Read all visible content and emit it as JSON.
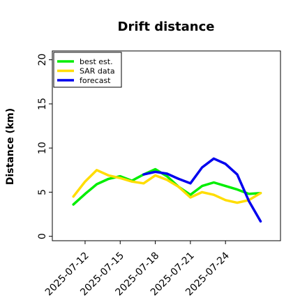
{
  "chart_data": {
    "type": "line",
    "title": "Drift distance",
    "xlabel": "",
    "ylabel": "Distance (km)",
    "ylim": [
      -0.5,
      21
    ],
    "yticks": [
      0,
      5,
      10,
      15,
      20
    ],
    "xticks": [
      "2025-07-12",
      "2025-07-15",
      "2025-07-18",
      "2025-07-21",
      "2025-07-24"
    ],
    "grid": false,
    "legend_position": "top-left",
    "series": [
      {
        "name": "best est.",
        "color": "#00ee00",
        "points": [
          {
            "x": "2025-07-11",
            "y": 3.6
          },
          {
            "x": "2025-07-12",
            "y": 4.8
          },
          {
            "x": "2025-07-13",
            "y": 5.9
          },
          {
            "x": "2025-07-14",
            "y": 6.5
          },
          {
            "x": "2025-07-15",
            "y": 6.8
          },
          {
            "x": "2025-07-16",
            "y": 6.3
          },
          {
            "x": "2025-07-17",
            "y": 7.0
          },
          {
            "x": "2025-07-18",
            "y": 7.6
          },
          {
            "x": "2025-07-19",
            "y": 6.8
          },
          {
            "x": "2025-07-20",
            "y": 5.6
          },
          {
            "x": "2025-07-21",
            "y": 4.7
          },
          {
            "x": "2025-07-22",
            "y": 5.7
          },
          {
            "x": "2025-07-23",
            "y": 6.1
          },
          {
            "x": "2025-07-24",
            "y": 5.7
          },
          {
            "x": "2025-07-25",
            "y": 5.3
          },
          {
            "x": "2025-07-26",
            "y": 4.8
          },
          {
            "x": "2025-07-27",
            "y": 4.9
          }
        ]
      },
      {
        "name": "SAR data",
        "color": "#ffdd00",
        "points": [
          {
            "x": "2025-07-11",
            "y": 4.5
          },
          {
            "x": "2025-07-12",
            "y": 6.2
          },
          {
            "x": "2025-07-13",
            "y": 7.5
          },
          {
            "x": "2025-07-14",
            "y": 6.9
          },
          {
            "x": "2025-07-15",
            "y": 6.6
          },
          {
            "x": "2025-07-16",
            "y": 6.2
          },
          {
            "x": "2025-07-17",
            "y": 6.0
          },
          {
            "x": "2025-07-18",
            "y": 6.9
          },
          {
            "x": "2025-07-19",
            "y": 6.4
          },
          {
            "x": "2025-07-20",
            "y": 5.6
          },
          {
            "x": "2025-07-21",
            "y": 4.4
          },
          {
            "x": "2025-07-22",
            "y": 5.0
          },
          {
            "x": "2025-07-23",
            "y": 4.7
          },
          {
            "x": "2025-07-24",
            "y": 4.1
          },
          {
            "x": "2025-07-25",
            "y": 3.8
          },
          {
            "x": "2025-07-26",
            "y": 4.1
          },
          {
            "x": "2025-07-27",
            "y": 4.9
          }
        ]
      },
      {
        "name": "forecast",
        "color": "#0000ee",
        "points": [
          {
            "x": "2025-07-17",
            "y": 7.0
          },
          {
            "x": "2025-07-18",
            "y": 7.3
          },
          {
            "x": "2025-07-19",
            "y": 7.1
          },
          {
            "x": "2025-07-20",
            "y": 6.5
          },
          {
            "x": "2025-07-21",
            "y": 6.0
          },
          {
            "x": "2025-07-22",
            "y": 7.8
          },
          {
            "x": "2025-07-23",
            "y": 8.8
          },
          {
            "x": "2025-07-24",
            "y": 8.2
          },
          {
            "x": "2025-07-25",
            "y": 7.0
          },
          {
            "x": "2025-07-26",
            "y": 4.0
          },
          {
            "x": "2025-07-27",
            "y": 1.7
          }
        ]
      }
    ]
  }
}
